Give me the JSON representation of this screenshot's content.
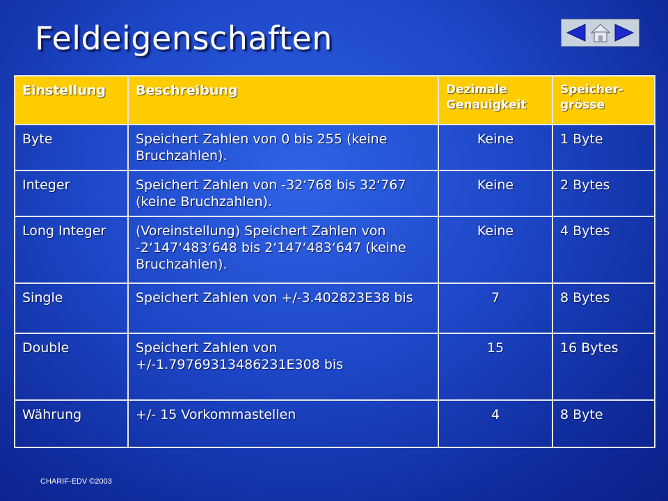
{
  "title": "Feldeigenschaften",
  "nav": {
    "prev_icon": "triangle-left",
    "home_icon": "house",
    "next_icon": "triangle-right"
  },
  "table": {
    "headers": [
      "Einstellung",
      "Beschreibung",
      "Dezimale Genauigkeit",
      "Speicher-grösse"
    ],
    "rows": [
      [
        "Byte",
        "Speichert Zahlen von 0 bis 255 (keine Bruchzahlen).",
        "Keine",
        "1 Byte"
      ],
      [
        "Integer",
        "Speichert Zahlen von -32‘768 bis 32‘767 (keine Bruchzahlen).",
        "Keine",
        "2 Bytes"
      ],
      [
        "Long Integer",
        "(Voreinstellung) Speichert Zahlen von -2‘147‘483‘648 bis 2‘147‘483‘647 (keine Bruchzahlen).",
        "Keine",
        "4 Bytes"
      ],
      [
        "Single",
        "Speichert Zahlen von +/-3.402823E38 bis",
        "7",
        "8 Bytes"
      ],
      [
        "Double",
        "Speichert Zahlen von +/-1.79769313486231E308 bis",
        "15",
        "16 Bytes"
      ],
      [
        "Währung",
        "+/- 15 Vorkommastellen",
        "4",
        "8 Byte"
      ]
    ]
  },
  "footer": "CHARIF-EDV ©2003",
  "colors": {
    "background": "#1c45c4",
    "header_fill": "#ffcc00",
    "nav_panel": "#c9d3df"
  }
}
